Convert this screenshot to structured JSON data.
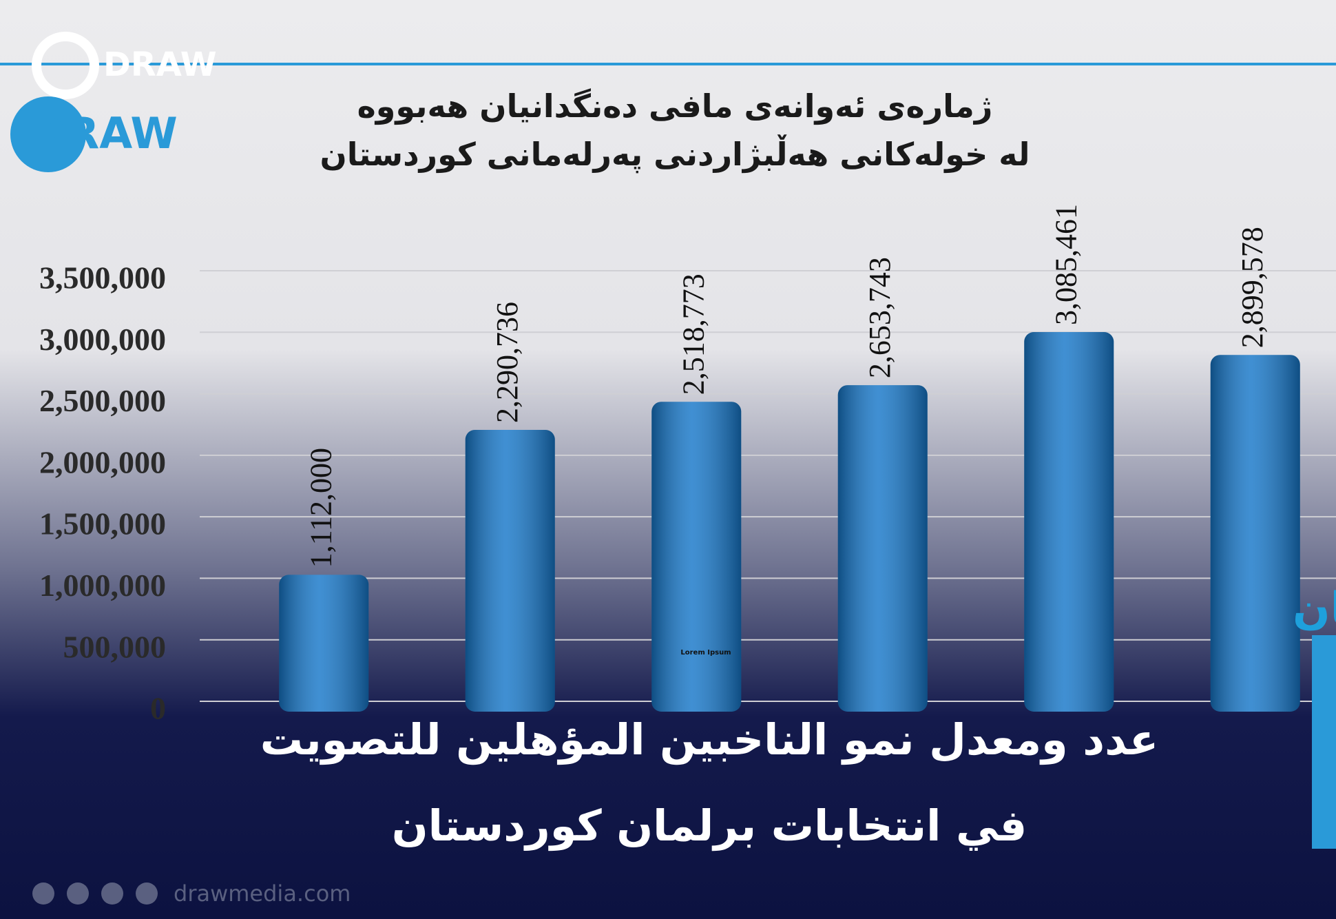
{
  "chart_data": {
    "type": "bar",
    "title_lines": [
      "ژمارەی ئەوانەی مافی دەنگدانیان هەبووە",
      "لە خولەکانی هەڵبژاردنی پەرلەمانی کوردستان"
    ],
    "values": [
      1112000,
      2290736,
      2518773,
      2653743,
      3085461,
      2899578
    ],
    "value_labels": [
      "1,112,000",
      "2,290,736",
      "2,518,773",
      "2,653,743",
      "3,085,461",
      "2,899,578"
    ],
    "color": "#1677c9",
    "ylim": [
      0,
      3500000
    ],
    "yticks": [
      0,
      {
        "value": 500000,
        "label": "500,000"
      },
      {
        "value": 1000000,
        "label": "1,000,000"
      },
      {
        "value": 1500000,
        "label": "1,500,000"
      },
      {
        "value": 2000000,
        "label": "2,000,000"
      },
      {
        "value": 2500000,
        "label": "2,500,000"
      },
      {
        "value": 3000000,
        "label": "3,000,000"
      },
      {
        "value": 3500000,
        "label": "3,500,000"
      }
    ],
    "grid": true
  },
  "overlay": {
    "logo": "DRAW",
    "region": "إقليم كوردستان",
    "headline_lines": [
      "عدد ومعدل نمو الناخبين المؤهلين للتصويت",
      "في انتخابات برلمان كوردستان"
    ],
    "watermark": "Lorem Ipsum",
    "website": "drawmedia.com"
  }
}
